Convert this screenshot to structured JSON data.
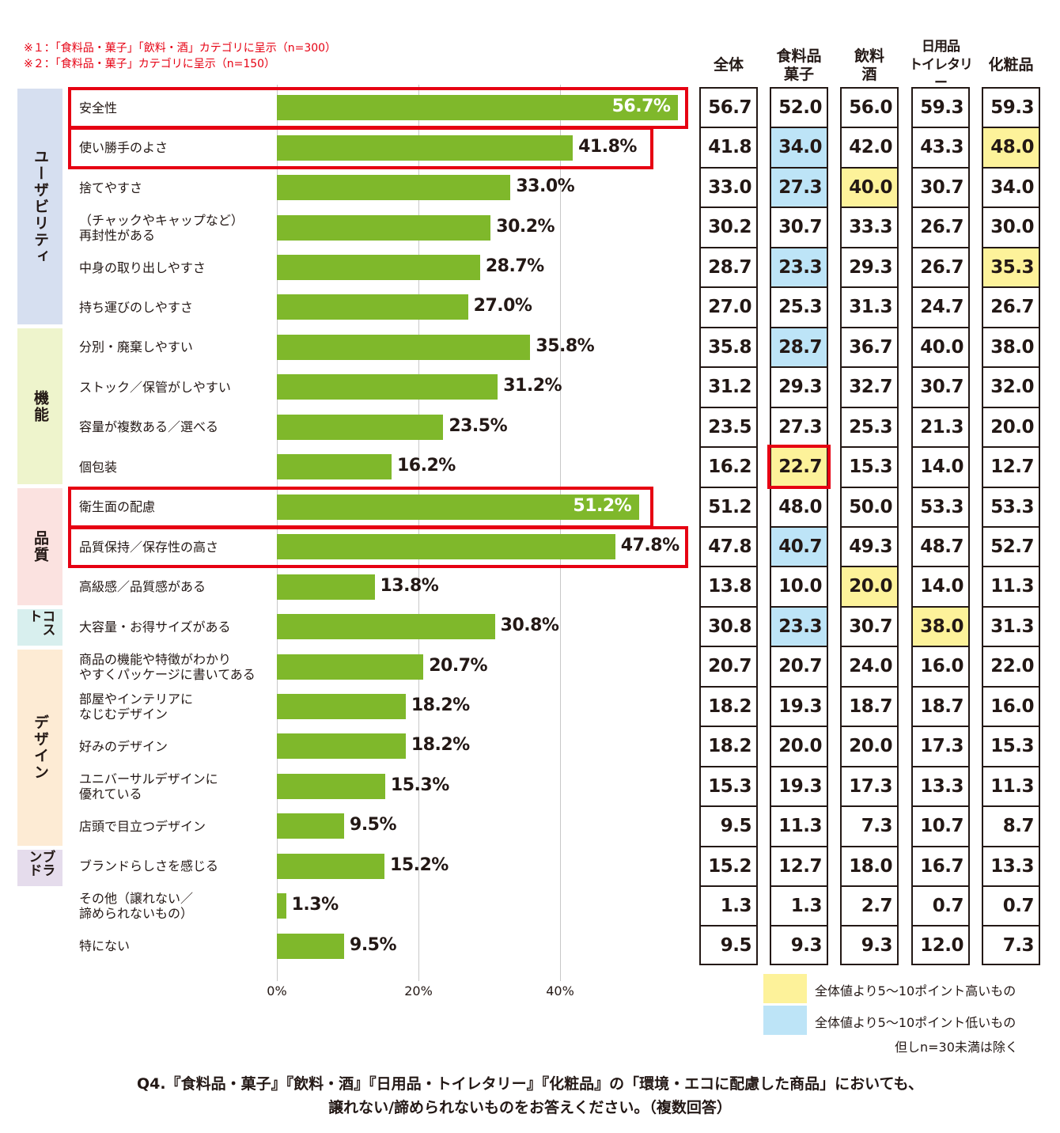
{
  "notes": [
    "※１：「食料品・菓子」「飲料・酒」カテゴリに呈示（n=300）",
    "※２：「食料品・菓子」カテゴリに呈示（n=150）"
  ],
  "colors": {
    "bar": "#7fb82b",
    "highlight_border": "#e60012",
    "higher": "#fdf29a",
    "lower": "#bde4f7",
    "group_usability": "#d6dff0",
    "group_function": "#eef4cc",
    "group_quality": "#fbe2e0",
    "group_cost": "#d8efee",
    "group_design": "#fdebd4",
    "group_brand": "#e5dcec"
  },
  "groups": [
    {
      "label": "ユーザビリティ",
      "color_key": "group_usability"
    },
    {
      "label": "機能",
      "color_key": "group_function"
    },
    {
      "label": "品質",
      "color_key": "group_quality"
    },
    {
      "label": "コスト",
      "color_key": "group_cost"
    },
    {
      "label": "デザイン",
      "color_key": "group_design"
    },
    {
      "label": "ブランド",
      "color_key": "group_brand"
    }
  ],
  "axis_ticks": [
    "0%",
    "20%",
    "40%"
  ],
  "columns": [
    "全体",
    "食料品\n菓子",
    "飲料\n酒",
    "日用品\nトイレタリー",
    "化粧品"
  ],
  "chart_data": {
    "type": "bar",
    "orientation": "horizontal",
    "xlim": [
      0,
      60
    ],
    "categories": [
      "安全性",
      "使い勝手のよさ",
      "捨てやすさ",
      "（チャックやキャップなど）\n再封性がある",
      "中身の取り出しやすさ",
      "持ち運びのしやすさ",
      "分別・廃棄しやすい",
      "ストック／保管がしやすい",
      "容量が複数ある／選べる",
      "個包装",
      "衛生面の配慮",
      "品質保持／保存性の高さ",
      "高級感／品質感がある",
      "大容量・お得サイズがある",
      "商品の機能や特徴がわかり\nやすくパッケージに書いてある",
      "部屋やインテリアに\nなじむデザイン",
      "好みのデザイン",
      "ユニバーサルデザインに\n優れている",
      "店頭で目立つデザイン",
      "ブランドらしさを感じる",
      "その他（譲れない／\n諦められないもの）",
      "特にない"
    ],
    "values": [
      56.7,
      41.8,
      33.0,
      30.2,
      28.7,
      27.0,
      35.8,
      31.2,
      23.5,
      16.2,
      51.2,
      47.8,
      13.8,
      30.8,
      20.7,
      18.2,
      18.2,
      15.3,
      9.5,
      15.2,
      1.3,
      9.5
    ],
    "value_labels": [
      "56.7%",
      "41.8%",
      "33.0%",
      "30.2%",
      "28.7%",
      "27.0%",
      "35.8%",
      "31.2%",
      "23.5%",
      "16.2%",
      "51.2%",
      "47.8%",
      "13.8%",
      "30.8%",
      "20.7%",
      "18.2%",
      "18.2%",
      "15.3%",
      "9.5%",
      "15.2%",
      "1.3%",
      "9.5%"
    ],
    "highlighted_rows": [
      0,
      1,
      10,
      11
    ],
    "table": [
      [
        "56.7",
        "52.0",
        "56.0",
        "59.3",
        "59.3"
      ],
      [
        "41.8",
        "34.0",
        "42.0",
        "43.3",
        "48.0"
      ],
      [
        "33.0",
        "27.3",
        "40.0",
        "30.7",
        "34.0"
      ],
      [
        "30.2",
        "30.7",
        "33.3",
        "26.7",
        "30.0"
      ],
      [
        "28.7",
        "23.3",
        "29.3",
        "26.7",
        "35.3"
      ],
      [
        "27.0",
        "25.3",
        "31.3",
        "24.7",
        "26.7"
      ],
      [
        "35.8",
        "28.7",
        "36.7",
        "40.0",
        "38.0"
      ],
      [
        "31.2",
        "29.3",
        "32.7",
        "30.7",
        "32.0"
      ],
      [
        "23.5",
        "27.3",
        "25.3",
        "21.3",
        "20.0"
      ],
      [
        "16.2",
        "22.7",
        "15.3",
        "14.0",
        "12.7"
      ],
      [
        "51.2",
        "48.0",
        "50.0",
        "53.3",
        "53.3"
      ],
      [
        "47.8",
        "40.7",
        "49.3",
        "48.7",
        "52.7"
      ],
      [
        "13.8",
        "10.0",
        "20.0",
        "14.0",
        "11.3"
      ],
      [
        "30.8",
        "23.3",
        "30.7",
        "38.0",
        "31.3"
      ],
      [
        "20.7",
        "20.7",
        "24.0",
        "16.0",
        "22.0"
      ],
      [
        "18.2",
        "19.3",
        "18.7",
        "18.7",
        "16.0"
      ],
      [
        "18.2",
        "20.0",
        "20.0",
        "17.3",
        "15.3"
      ],
      [
        "15.3",
        "19.3",
        "17.3",
        "13.3",
        "11.3"
      ],
      [
        "9.5",
        "11.3",
        "7.3",
        "10.7",
        "8.7"
      ],
      [
        "15.2",
        "12.7",
        "18.0",
        "16.7",
        "13.3"
      ],
      [
        "1.3",
        "1.3",
        "2.7",
        "0.7",
        "0.7"
      ],
      [
        "9.5",
        "9.3",
        "9.3",
        "12.0",
        "7.3"
      ]
    ],
    "cell_marks": [
      {
        "row": 1,
        "col": 1,
        "mark": "lower"
      },
      {
        "row": 1,
        "col": 4,
        "mark": "higher"
      },
      {
        "row": 2,
        "col": 1,
        "mark": "lower"
      },
      {
        "row": 2,
        "col": 2,
        "mark": "higher"
      },
      {
        "row": 4,
        "col": 1,
        "mark": "lower"
      },
      {
        "row": 4,
        "col": 4,
        "mark": "higher"
      },
      {
        "row": 6,
        "col": 1,
        "mark": "lower"
      },
      {
        "row": 9,
        "col": 1,
        "mark": "higher-boxed"
      },
      {
        "row": 11,
        "col": 1,
        "mark": "lower"
      },
      {
        "row": 12,
        "col": 2,
        "mark": "higher"
      },
      {
        "row": 13,
        "col": 1,
        "mark": "lower"
      },
      {
        "row": 13,
        "col": 3,
        "mark": "higher"
      }
    ]
  },
  "legend": {
    "higher": "全体値より5～10ポイント高いもの",
    "lower": "全体値より5～10ポイント低いもの",
    "note": "但しn=30未満は除く"
  },
  "question": {
    "line1": "Q4.『食料品・菓子』『飲料・酒』『日用品・トイレタリー』『化粧品』の「環境・エコに配慮した商品」においても、",
    "line2": "譲れない/諦められないものをお答えください。（複数回答）"
  }
}
